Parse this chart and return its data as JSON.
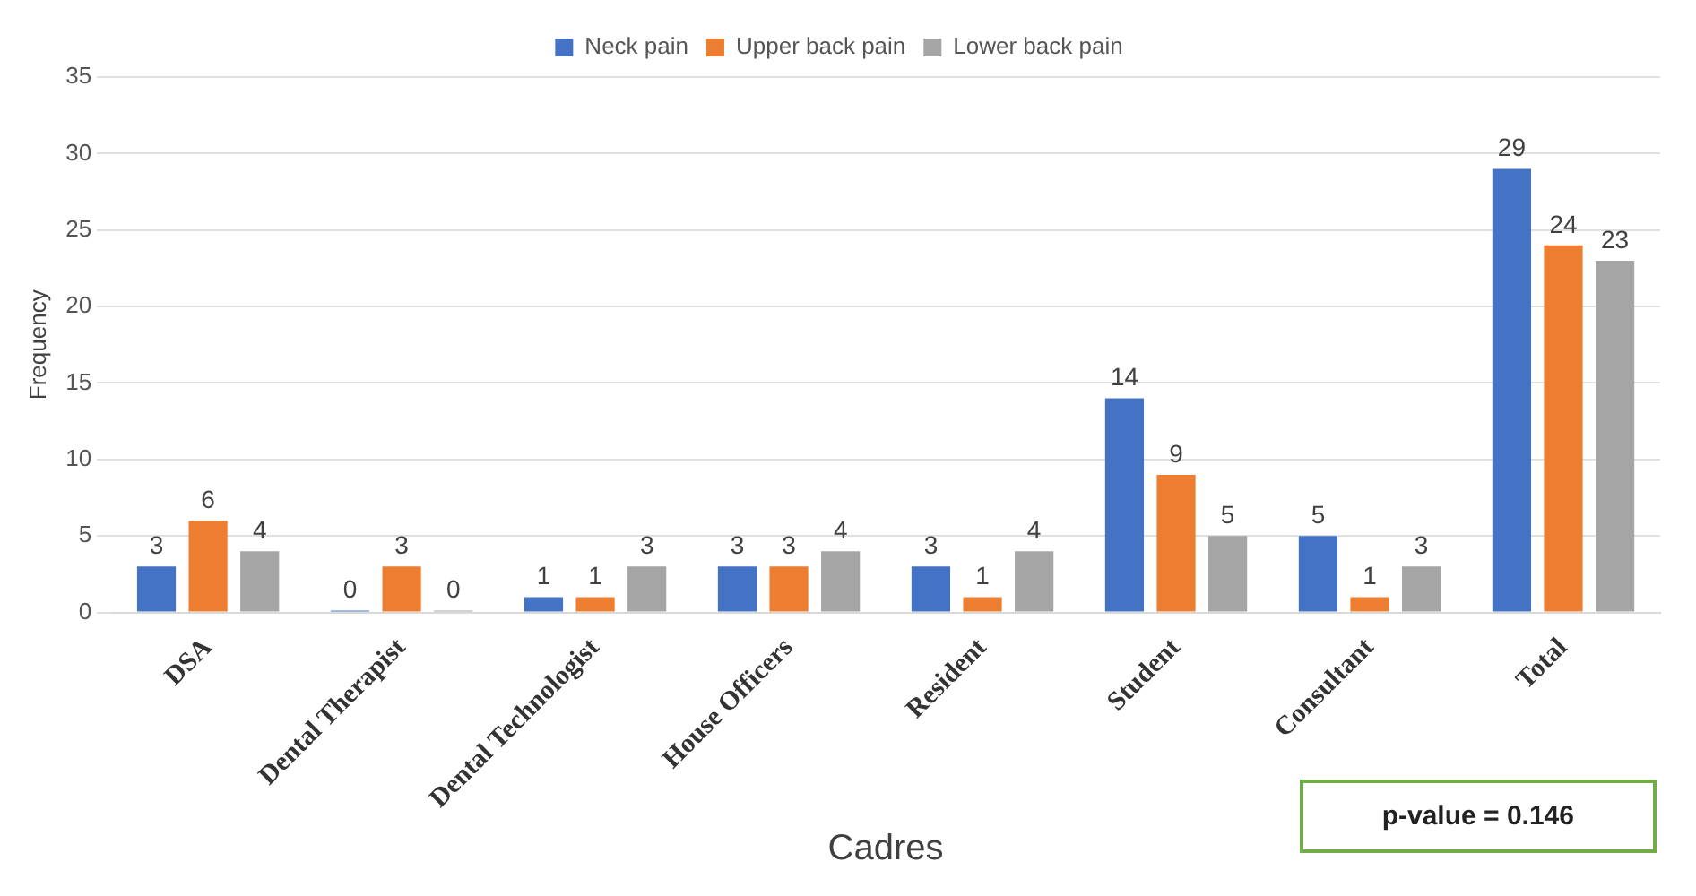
{
  "chart_data": {
    "type": "bar",
    "xlabel": "Cadres",
    "ylabel": "Frequency",
    "categories": [
      "DSA",
      "Dental Therapist",
      "Dental Technologist",
      "House Officers",
      "Resident",
      "Student",
      "Consultant",
      "Total"
    ],
    "series": [
      {
        "name": "Neck pain",
        "color": "#4472c4",
        "values": [
          3,
          0,
          1,
          3,
          3,
          14,
          5,
          29
        ]
      },
      {
        "name": "Upper back pain",
        "color": "#ed7d31",
        "values": [
          6,
          3,
          1,
          3,
          1,
          9,
          1,
          24
        ]
      },
      {
        "name": "Lower back pain",
        "color": "#a5a5a5",
        "values": [
          4,
          0,
          3,
          4,
          4,
          5,
          3,
          23
        ]
      }
    ],
    "ylim": [
      0,
      35
    ],
    "yticks": [
      0,
      5,
      10,
      15,
      20,
      25,
      30,
      35
    ],
    "grid": "y",
    "legend": "top",
    "data_labels": true,
    "annotations": [
      "p-value = 0.146"
    ]
  }
}
